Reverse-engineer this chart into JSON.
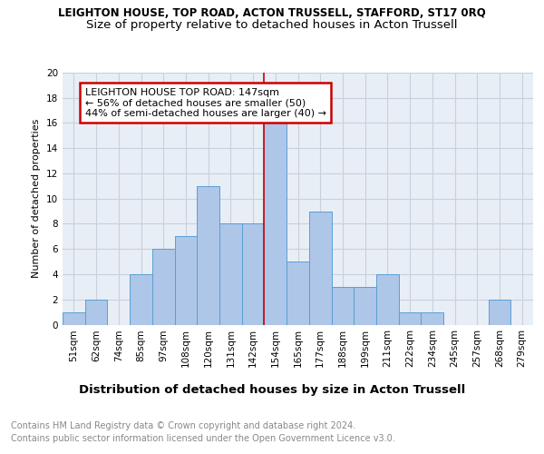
{
  "title": "LEIGHTON HOUSE, TOP ROAD, ACTON TRUSSELL, STAFFORD, ST17 0RQ",
  "subtitle": "Size of property relative to detached houses in Acton Trussell",
  "xlabel": "Distribution of detached houses by size in Acton Trussell",
  "ylabel": "Number of detached properties",
  "categories": [
    "51sqm",
    "62sqm",
    "74sqm",
    "85sqm",
    "97sqm",
    "108sqm",
    "120sqm",
    "131sqm",
    "142sqm",
    "154sqm",
    "165sqm",
    "177sqm",
    "188sqm",
    "199sqm",
    "211sqm",
    "222sqm",
    "234sqm",
    "245sqm",
    "257sqm",
    "268sqm",
    "279sqm"
  ],
  "values": [
    1,
    2,
    0,
    4,
    6,
    7,
    11,
    8,
    8,
    16,
    5,
    9,
    3,
    3,
    4,
    1,
    1,
    0,
    0,
    2,
    0
  ],
  "bar_color": "#aec6e8",
  "bar_edge_color": "#5a9fd4",
  "vline_x": 8.5,
  "vline_color": "#cc0000",
  "annotation_text": "LEIGHTON HOUSE TOP ROAD: 147sqm\n← 56% of detached houses are smaller (50)\n44% of semi-detached houses are larger (40) →",
  "annotation_box_color": "#ffffff",
  "annotation_box_edge_color": "#cc0000",
  "ylim": [
    0,
    20
  ],
  "yticks": [
    0,
    2,
    4,
    6,
    8,
    10,
    12,
    14,
    16,
    18,
    20
  ],
  "grid_color": "#c8d0dc",
  "bg_color": "#e8eef5",
  "footer_line1": "Contains HM Land Registry data © Crown copyright and database right 2024.",
  "footer_line2": "Contains public sector information licensed under the Open Government Licence v3.0.",
  "title_fontsize": 8.5,
  "subtitle_fontsize": 9.5,
  "xlabel_fontsize": 9.5,
  "ylabel_fontsize": 8,
  "tick_fontsize": 7.5,
  "annot_fontsize": 8,
  "footer_fontsize": 7
}
